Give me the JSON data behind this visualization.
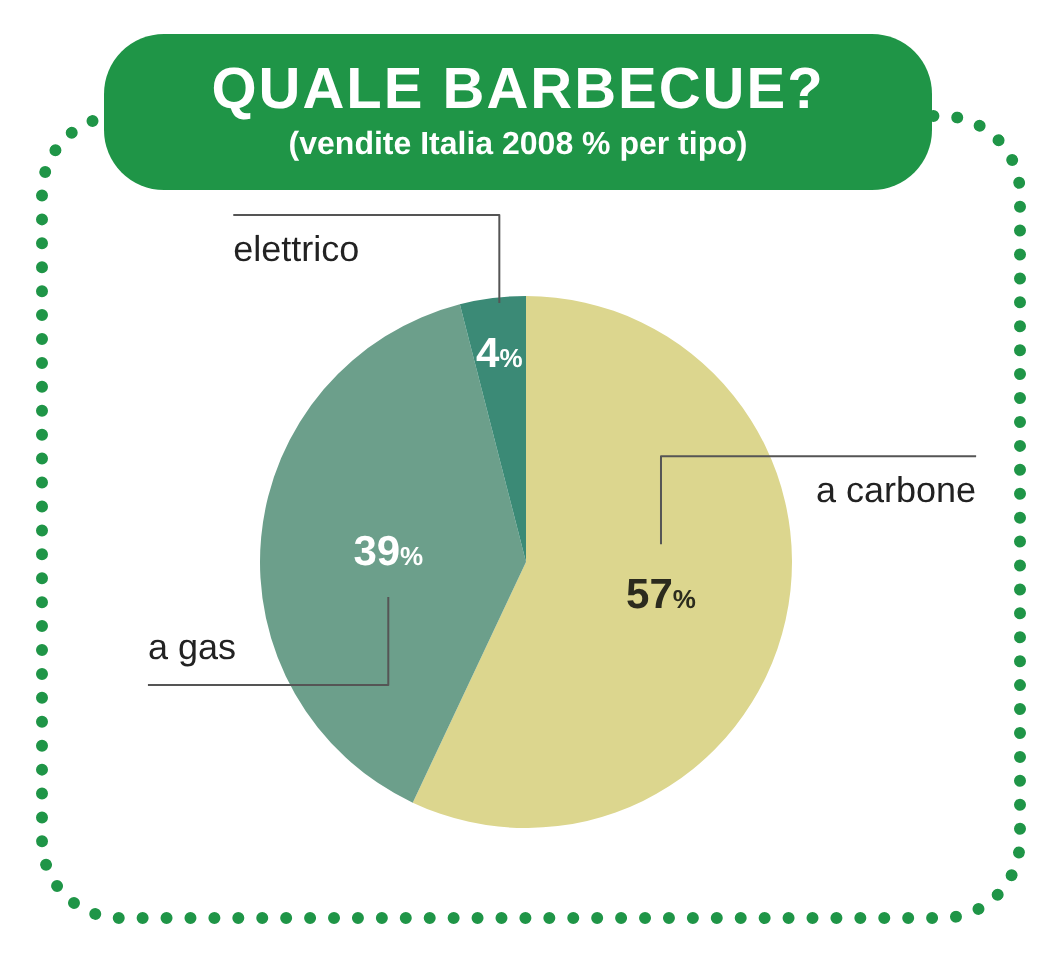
{
  "chart_data": {
    "type": "pie",
    "title": "QUALE BARBECUE?",
    "subtitle": "(vendite Italia 2008 % per tipo)",
    "categories": [
      "a carbone",
      "a gas",
      "elettrico"
    ],
    "values": [
      57,
      39,
      4
    ],
    "colors": [
      "#dcd68e",
      "#6c9f8b",
      "#3b8a76"
    ],
    "value_labels": [
      "57%",
      "39%",
      "4%"
    ]
  }
}
